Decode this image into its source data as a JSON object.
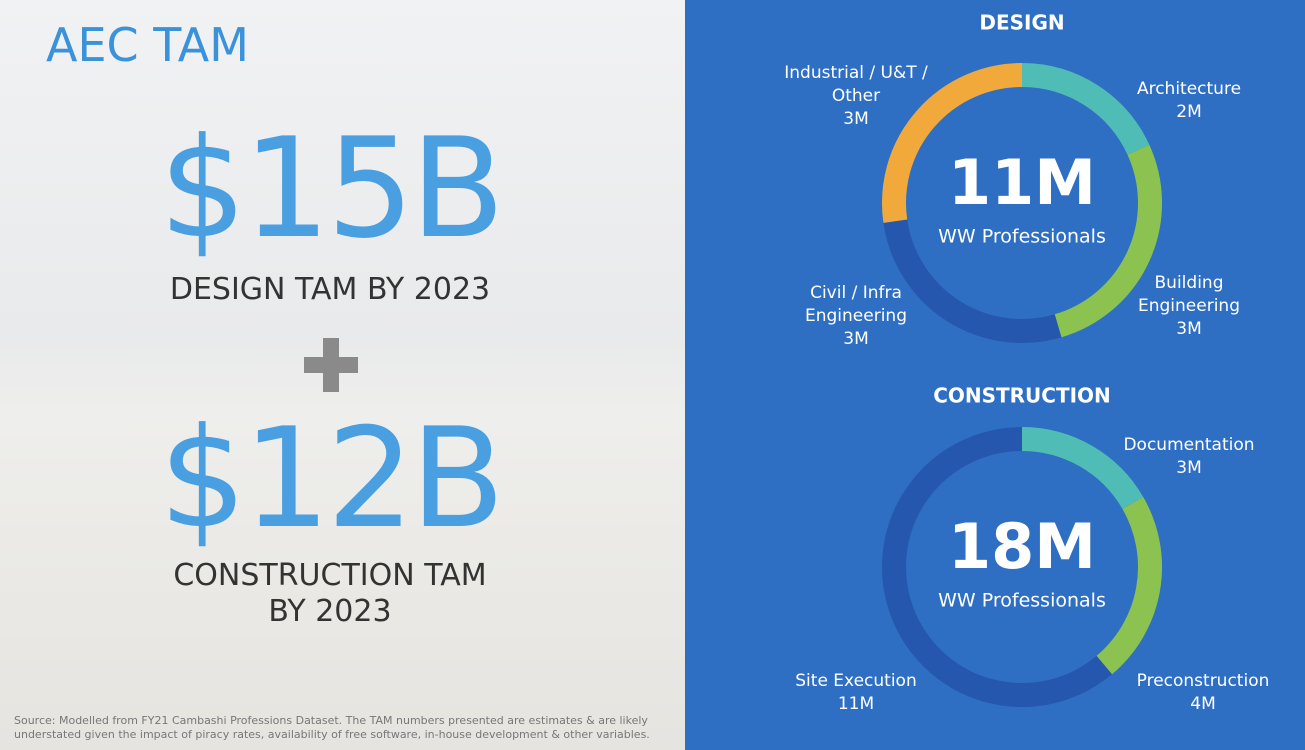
{
  "title": "AEC TAM",
  "design_tam": {
    "amount": "$15B",
    "label": "DESIGN TAM BY 2023"
  },
  "construction_tam": {
    "amount": "$12B",
    "label": "CONSTRUCTION TAM BY 2023"
  },
  "source": "Source: Modelled from FY21 Cambashi Professions Dataset. The TAM numbers presented are estimates & are likely understated given the impact of piracy rates, availability of free software, in-house development & other variables.",
  "chart_data": [
    {
      "type": "donut",
      "title": "DESIGN",
      "center_value": "11M",
      "center_label": "WW Professionals",
      "categories": [
        "Architecture",
        "Building Engineering",
        "Civil / Infra Engineering",
        "Industrial / U&T / Other"
      ],
      "values": [
        2,
        3,
        3,
        3
      ],
      "value_labels": [
        "2M",
        "3M",
        "3M",
        "3M"
      ],
      "colors": [
        "#4fbcb6",
        "#8cc350",
        "#2557ae",
        "#f2a93b"
      ]
    },
    {
      "type": "donut",
      "title": "CONSTRUCTION",
      "center_value": "18M",
      "center_label": "WW Professionals",
      "categories": [
        "Documentation",
        "Preconstruction",
        "Site Execution"
      ],
      "values": [
        3,
        4,
        11
      ],
      "value_labels": [
        "3M",
        "4M",
        "11M"
      ],
      "colors": [
        "#4fbcb6",
        "#8cc350",
        "#2557ae"
      ]
    }
  ]
}
